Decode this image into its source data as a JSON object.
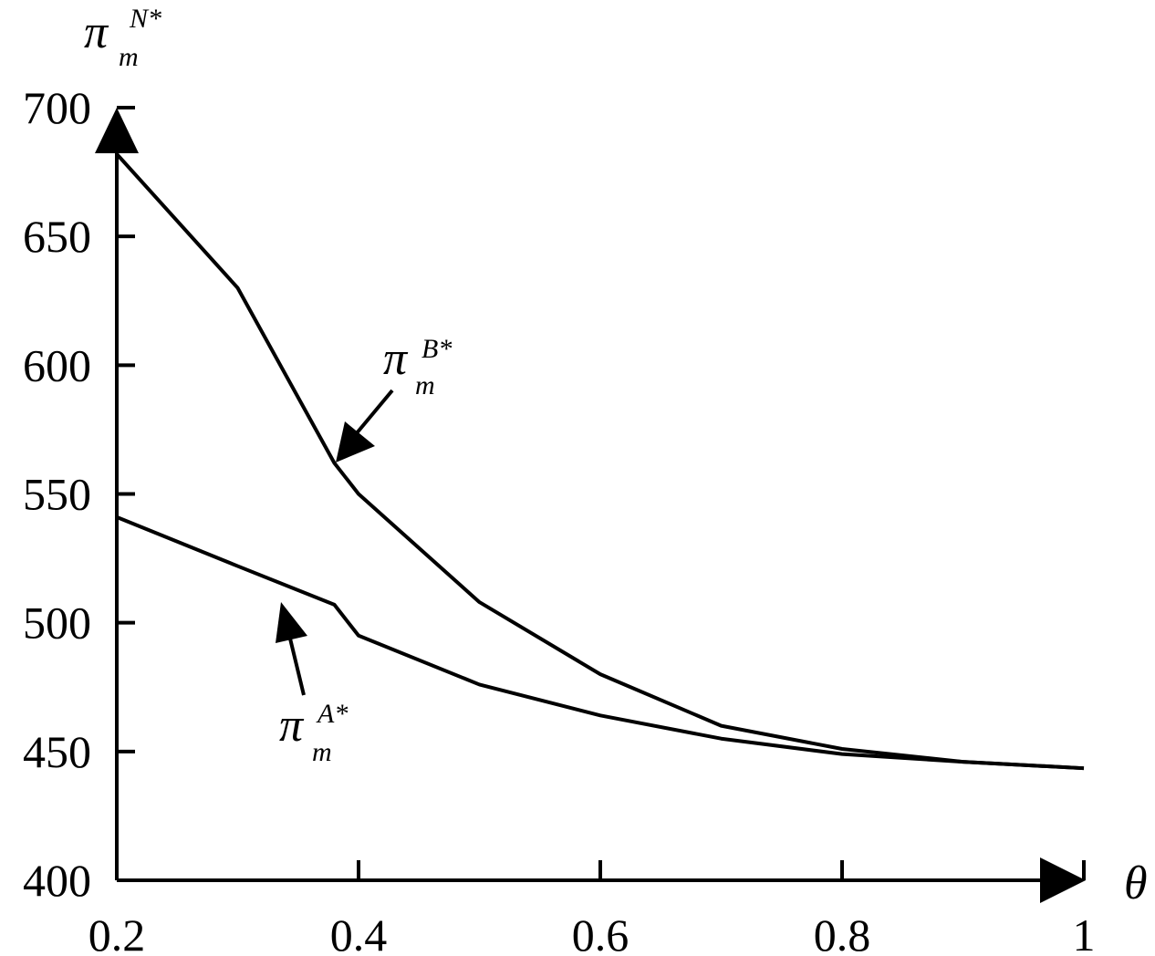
{
  "chart_data": {
    "type": "line",
    "y_label": {
      "symbol": "π",
      "sub": "m",
      "sup": "N*"
    },
    "x_label": "θ",
    "x": [
      0.2,
      0.3,
      0.38,
      0.4,
      0.5,
      0.6,
      0.7,
      0.8,
      0.9,
      1
    ],
    "series": [
      {
        "label": {
          "symbol": "π",
          "sub": "m",
          "sup": "B*"
        },
        "color": "#000000",
        "values": [
          682,
          630,
          562,
          550,
          508,
          480,
          460,
          451,
          446,
          443.5
        ]
      },
      {
        "label": {
          "symbol": "π",
          "sub": "m",
          "sup": "A*"
        },
        "color": "#000000",
        "values": [
          541,
          522,
          507,
          495,
          476,
          464,
          455,
          449,
          446,
          443.5
        ]
      }
    ],
    "xlim": [
      0.2,
      1
    ],
    "xticks": [
      0.2,
      0.4,
      0.6,
      0.8,
      1
    ],
    "ylim": [
      400,
      700
    ],
    "yticks": [
      400,
      450,
      500,
      550,
      600,
      650,
      700
    ],
    "grid": false
  }
}
